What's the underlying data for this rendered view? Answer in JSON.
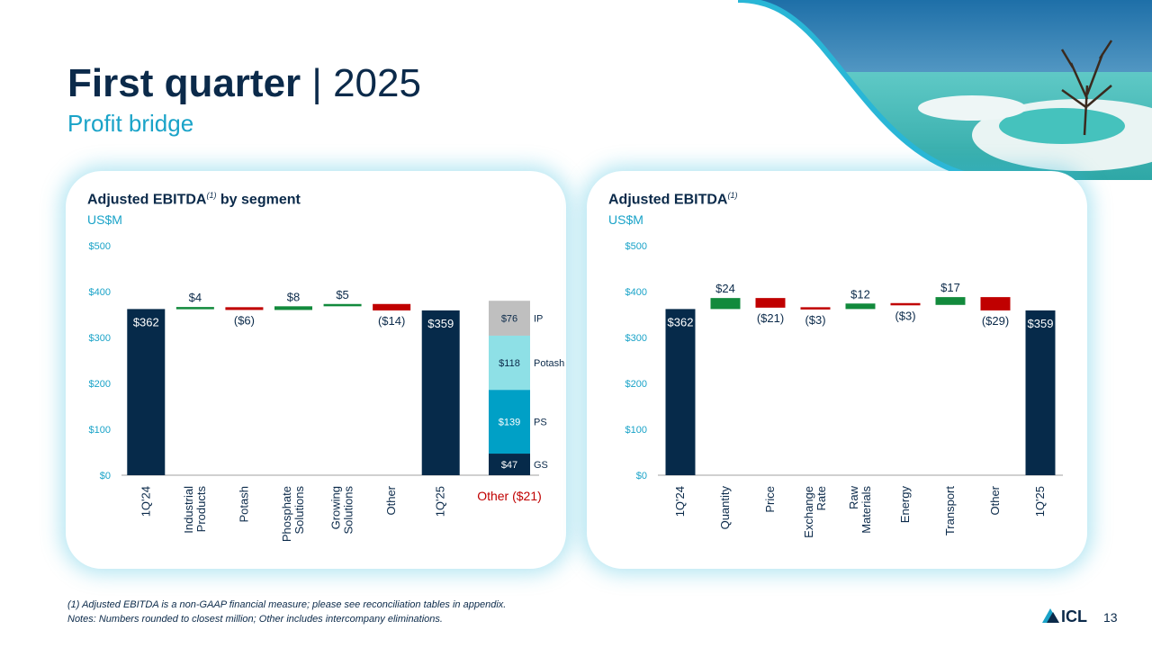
{
  "slide": {
    "title": "First quarter",
    "title_sep": "|",
    "title_year": "2025",
    "subtitle": "Profit bridge",
    "page_number": "13",
    "footnote_1": "(1) Adjusted EBITDA is a non-GAAP financial measure; please see reconciliation tables in appendix.",
    "footnote_2": "Notes: Numbers rounded to closest million; Other includes intercompany eliminations.",
    "logo_text": "ICL"
  },
  "left_panel": {
    "title": "Adjusted EBITDA",
    "title_sup": "(1)",
    "title_suffix": " by segment",
    "unit": "US$M"
  },
  "right_panel": {
    "title": "Adjusted EBITDA",
    "title_sup": "(1)",
    "unit": "US$M"
  },
  "colors": {
    "navy": "#062a4a",
    "green": "#128a3c",
    "red": "#c00000",
    "ip": "#bfbfbf",
    "potash": "#8ee0e6",
    "ps": "#00a0c6",
    "gs": "#062a4a",
    "accent": "#1aa3c8"
  },
  "chart_data": [
    {
      "type": "bar",
      "subtype": "waterfall",
      "title": "Adjusted EBITDA(1) by segment",
      "ylabel": "US$M",
      "ylim": [
        0,
        500
      ],
      "yticks": [
        "$0",
        "$100",
        "$200",
        "$300",
        "$400",
        "$500"
      ],
      "categories": [
        "1Q'24",
        "Industrial Products",
        "Potash",
        "Phosphate Solutions",
        "Growing Solutions",
        "Other",
        "1Q'25"
      ],
      "values": [
        362,
        4,
        -6,
        8,
        5,
        -14,
        359
      ],
      "labels": [
        "$362",
        "$4",
        "($6)",
        "$8",
        "$5",
        "($14)",
        "$359"
      ],
      "kinds": [
        "total",
        "delta",
        "delta",
        "delta",
        "delta",
        "delta",
        "total"
      ],
      "breakdown": {
        "category": "Other ($21)",
        "segments": [
          {
            "name": "GS",
            "value": 47,
            "label": "$47"
          },
          {
            "name": "PS",
            "value": 139,
            "label": "$139"
          },
          {
            "name": "Potash",
            "value": 118,
            "label": "$118"
          },
          {
            "name": "IP",
            "value": 76,
            "label": "$76"
          }
        ]
      },
      "grid": false
    },
    {
      "type": "bar",
      "subtype": "waterfall",
      "title": "Adjusted EBITDA(1)",
      "ylabel": "US$M",
      "ylim": [
        0,
        500
      ],
      "yticks": [
        "$0",
        "$100",
        "$200",
        "$300",
        "$400",
        "$500"
      ],
      "categories": [
        "1Q'24",
        "Quantity",
        "Price",
        "Exchange Rate",
        "Raw Materials",
        "Energy",
        "Transport",
        "Other",
        "1Q'25"
      ],
      "values": [
        362,
        24,
        -21,
        -3,
        12,
        -3,
        17,
        -29,
        359
      ],
      "labels": [
        "$362",
        "$24",
        "($21)",
        "($3)",
        "$12",
        "($3)",
        "$17",
        "($29)",
        "$359"
      ],
      "kinds": [
        "total",
        "delta",
        "delta",
        "delta",
        "delta",
        "delta",
        "delta",
        "delta",
        "total"
      ],
      "grid": false
    }
  ]
}
